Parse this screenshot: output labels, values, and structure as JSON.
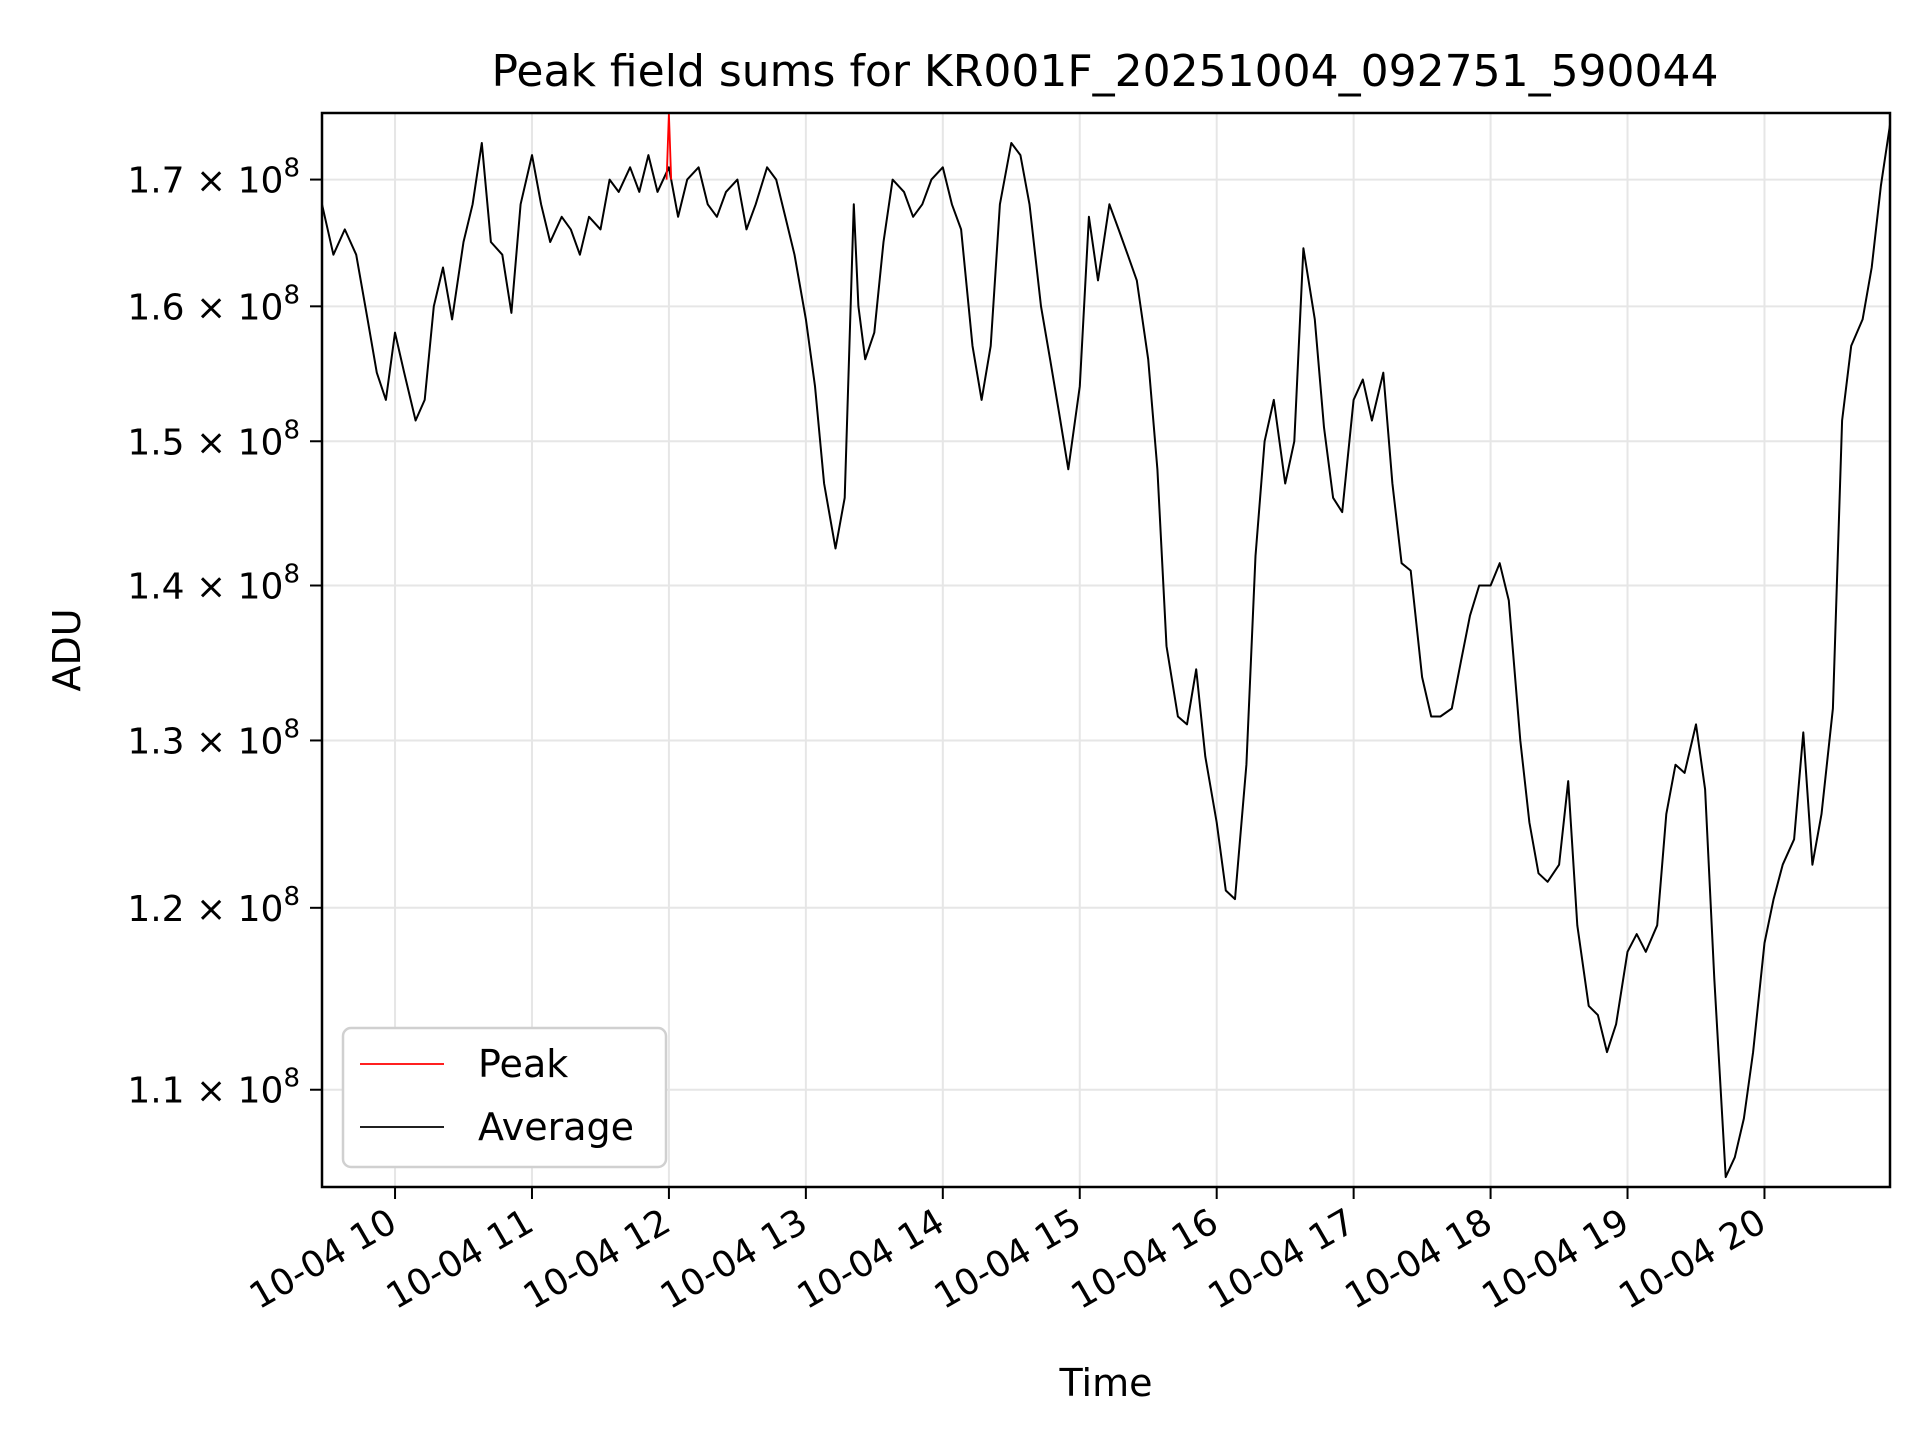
{
  "chart_data": {
    "type": "line",
    "title": "Peak field sums for KR001F_20251004_092751_590044",
    "xlabel": "Time",
    "ylabel": "ADU",
    "x_scale": "time",
    "y_scale": "log",
    "xlim": [
      "2025-10-04 09:28",
      "2025-10-04 20:55"
    ],
    "ylim": [
      105000000,
      175500000
    ],
    "grid": true,
    "legend_position": "lower-left",
    "x_ticks": [
      {
        "value": "2025-10-04 10:00",
        "label": "10-04 10"
      },
      {
        "value": "2025-10-04 11:00",
        "label": "10-04 11"
      },
      {
        "value": "2025-10-04 12:00",
        "label": "10-04 12"
      },
      {
        "value": "2025-10-04 13:00",
        "label": "10-04 13"
      },
      {
        "value": "2025-10-04 14:00",
        "label": "10-04 14"
      },
      {
        "value": "2025-10-04 15:00",
        "label": "10-04 15"
      },
      {
        "value": "2025-10-04 16:00",
        "label": "10-04 16"
      },
      {
        "value": "2025-10-04 17:00",
        "label": "10-04 17"
      },
      {
        "value": "2025-10-04 18:00",
        "label": "10-04 18"
      },
      {
        "value": "2025-10-04 19:00",
        "label": "10-04 19"
      },
      {
        "value": "2025-10-04 20:00",
        "label": "10-04 20"
      }
    ],
    "y_ticks": [
      {
        "value": 110000000,
        "mantissa": "1.1",
        "exponent": "8"
      },
      {
        "value": 120000000,
        "mantissa": "1.2",
        "exponent": "8"
      },
      {
        "value": 130000000,
        "mantissa": "1.3",
        "exponent": "8"
      },
      {
        "value": 140000000,
        "mantissa": "1.4",
        "exponent": "8"
      },
      {
        "value": 150000000,
        "mantissa": "1.5",
        "exponent": "8"
      },
      {
        "value": 160000000,
        "mantissa": "1.6",
        "exponent": "8"
      },
      {
        "value": 170000000,
        "mantissa": "1.7",
        "exponent": "8"
      }
    ],
    "series": [
      {
        "name": "Peak",
        "color": "#ff0000",
        "x": [
          "2025-10-04 11:59",
          "2025-10-04 12:00",
          "2025-10-04 12:01"
        ],
        "y": [
          170000000,
          175500000,
          170000000
        ]
      },
      {
        "name": "Average",
        "color": "#000000",
        "x": [
          "2025-10-04 09:28",
          "2025-10-04 09:33",
          "2025-10-04 09:38",
          "2025-10-04 09:43",
          "2025-10-04 09:48",
          "2025-10-04 09:52",
          "2025-10-04 09:56",
          "2025-10-04 10:00",
          "2025-10-04 10:04",
          "2025-10-04 10:09",
          "2025-10-04 10:13",
          "2025-10-04 10:17",
          "2025-10-04 10:21",
          "2025-10-04 10:25",
          "2025-10-04 10:30",
          "2025-10-04 10:34",
          "2025-10-04 10:38",
          "2025-10-04 10:42",
          "2025-10-04 10:47",
          "2025-10-04 10:51",
          "2025-10-04 10:55",
          "2025-10-04 11:00",
          "2025-10-04 11:04",
          "2025-10-04 11:08",
          "2025-10-04 11:13",
          "2025-10-04 11:17",
          "2025-10-04 11:21",
          "2025-10-04 11:25",
          "2025-10-04 11:30",
          "2025-10-04 11:34",
          "2025-10-04 11:38",
          "2025-10-04 11:43",
          "2025-10-04 11:47",
          "2025-10-04 11:51",
          "2025-10-04 11:55",
          "2025-10-04 12:00",
          "2025-10-04 12:04",
          "2025-10-04 12:08",
          "2025-10-04 12:13",
          "2025-10-04 12:17",
          "2025-10-04 12:21",
          "2025-10-04 12:25",
          "2025-10-04 12:30",
          "2025-10-04 12:34",
          "2025-10-04 12:38",
          "2025-10-04 12:43",
          "2025-10-04 12:47",
          "2025-10-04 12:51",
          "2025-10-04 12:55",
          "2025-10-04 13:00",
          "2025-10-04 13:04",
          "2025-10-04 13:08",
          "2025-10-04 13:13",
          "2025-10-04 13:17",
          "2025-10-04 13:21",
          "2025-10-04 13:23",
          "2025-10-04 13:26",
          "2025-10-04 13:30",
          "2025-10-04 13:34",
          "2025-10-04 13:38",
          "2025-10-04 13:43",
          "2025-10-04 13:47",
          "2025-10-04 13:51",
          "2025-10-04 13:55",
          "2025-10-04 14:00",
          "2025-10-04 14:04",
          "2025-10-04 14:08",
          "2025-10-04 14:13",
          "2025-10-04 14:17",
          "2025-10-04 14:21",
          "2025-10-04 14:25",
          "2025-10-04 14:30",
          "2025-10-04 14:34",
          "2025-10-04 14:38",
          "2025-10-04 14:43",
          "2025-10-04 14:47",
          "2025-10-04 14:51",
          "2025-10-04 14:55",
          "2025-10-04 15:00",
          "2025-10-04 15:04",
          "2025-10-04 15:08",
          "2025-10-04 15:13",
          "2025-10-04 15:17",
          "2025-10-04 15:21",
          "2025-10-04 15:25",
          "2025-10-04 15:30",
          "2025-10-04 15:34",
          "2025-10-04 15:38",
          "2025-10-04 15:43",
          "2025-10-04 15:47",
          "2025-10-04 15:51",
          "2025-10-04 15:55",
          "2025-10-04 16:00",
          "2025-10-04 16:04",
          "2025-10-04 16:08",
          "2025-10-04 16:13",
          "2025-10-04 16:17",
          "2025-10-04 16:21",
          "2025-10-04 16:25",
          "2025-10-04 16:30",
          "2025-10-04 16:34",
          "2025-10-04 16:38",
          "2025-10-04 16:43",
          "2025-10-04 16:47",
          "2025-10-04 16:51",
          "2025-10-04 16:55",
          "2025-10-04 17:00",
          "2025-10-04 17:04",
          "2025-10-04 17:08",
          "2025-10-04 17:13",
          "2025-10-04 17:17",
          "2025-10-04 17:21",
          "2025-10-04 17:25",
          "2025-10-04 17:30",
          "2025-10-04 17:34",
          "2025-10-04 17:38",
          "2025-10-04 17:43",
          "2025-10-04 17:47",
          "2025-10-04 17:51",
          "2025-10-04 17:55",
          "2025-10-04 18:00",
          "2025-10-04 18:04",
          "2025-10-04 18:08",
          "2025-10-04 18:13",
          "2025-10-04 18:17",
          "2025-10-04 18:21",
          "2025-10-04 18:25",
          "2025-10-04 18:30",
          "2025-10-04 18:34",
          "2025-10-04 18:38",
          "2025-10-04 18:43",
          "2025-10-04 18:47",
          "2025-10-04 18:51",
          "2025-10-04 18:55",
          "2025-10-04 19:00",
          "2025-10-04 19:04",
          "2025-10-04 19:08",
          "2025-10-04 19:13",
          "2025-10-04 19:17",
          "2025-10-04 19:21",
          "2025-10-04 19:25",
          "2025-10-04 19:30",
          "2025-10-04 19:34",
          "2025-10-04 19:38",
          "2025-10-04 19:43",
          "2025-10-04 19:47",
          "2025-10-04 19:51",
          "2025-10-04 19:55",
          "2025-10-04 20:00",
          "2025-10-04 20:04",
          "2025-10-04 20:08",
          "2025-10-04 20:13",
          "2025-10-04 20:17",
          "2025-10-04 20:21",
          "2025-10-04 20:25",
          "2025-10-04 20:30",
          "2025-10-04 20:34",
          "2025-10-04 20:38",
          "2025-10-04 20:43",
          "2025-10-04 20:47",
          "2025-10-04 20:51",
          "2025-10-04 20:55"
        ],
        "y": [
          168000000,
          164000000,
          166000000,
          164000000,
          159000000,
          155000000,
          153000000,
          158000000,
          155000000,
          151500000,
          153000000,
          160000000,
          163000000,
          159000000,
          165000000,
          168000000,
          173000000,
          165000000,
          164000000,
          159500000,
          168000000,
          172000000,
          168000000,
          165000000,
          167000000,
          166000000,
          164000000,
          167000000,
          166000000,
          170000000,
          169000000,
          171000000,
          169000000,
          172000000,
          169000000,
          171000000,
          167000000,
          170000000,
          171000000,
          168000000,
          167000000,
          169000000,
          170000000,
          166000000,
          168000000,
          171000000,
          170000000,
          167000000,
          164000000,
          159000000,
          154000000,
          147000000,
          142500000,
          146000000,
          168000000,
          160000000,
          156000000,
          158000000,
          165000000,
          170000000,
          169000000,
          167000000,
          168000000,
          170000000,
          171000000,
          168000000,
          166000000,
          157000000,
          153000000,
          157000000,
          168000000,
          173000000,
          172000000,
          168000000,
          160000000,
          156000000,
          152000000,
          148000000,
          154000000,
          167000000,
          162000000,
          168000000,
          166000000,
          164000000,
          162000000,
          156000000,
          148000000,
          136000000,
          131500000,
          131000000,
          134500000,
          129000000,
          125000000,
          121000000,
          120500000,
          128500000,
          142000000,
          150000000,
          153000000,
          147000000,
          150000000,
          164500000,
          159000000,
          151000000,
          146000000,
          145000000,
          153000000,
          154500000,
          151500000,
          155000000,
          147000000,
          141500000,
          141000000,
          134000000,
          131500000,
          131500000,
          132000000,
          135000000,
          138000000,
          140000000,
          140000000,
          141500000,
          139000000,
          130000000,
          125000000,
          122000000,
          121500000,
          122500000,
          127500000,
          119000000,
          114500000,
          114000000,
          112000000,
          113500000,
          117500000,
          118500000,
          117500000,
          119000000,
          125500000,
          128500000,
          128000000,
          131000000,
          127000000,
          116000000,
          105500000,
          106500000,
          108500000,
          112000000,
          118000000,
          120500000,
          122500000,
          124000000,
          130500000,
          122500000,
          125500000,
          132000000,
          151500000,
          157000000,
          159000000,
          163000000,
          169500000,
          174500000
        ]
      }
    ]
  }
}
